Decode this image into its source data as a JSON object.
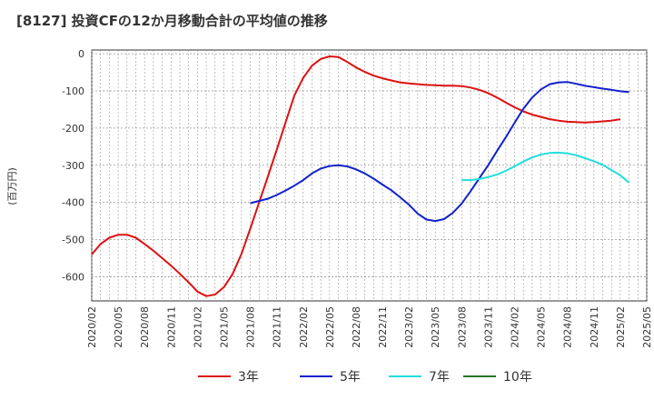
{
  "chart_data": {
    "type": "line",
    "title": "[8127]  投資CFの12か月移動合計の平均値の推移",
    "ylabel": "(百万円)",
    "xlabel": "",
    "ylim": [
      -665,
      10
    ],
    "yticks": [
      0,
      -100,
      -200,
      -300,
      -400,
      -500,
      -600
    ],
    "ytick_labels": [
      "0",
      "-100",
      "-200",
      "-300",
      "-400",
      "-500",
      "-600"
    ],
    "xlim": [
      "2020-02",
      "2025-05"
    ],
    "xticks": [
      "2020/02",
      "2020/05",
      "2020/08",
      "2020/11",
      "2021/02",
      "2021/05",
      "2021/08",
      "2021/11",
      "2022/02",
      "2022/05",
      "2022/08",
      "2022/11",
      "2023/02",
      "2023/05",
      "2023/08",
      "2023/11",
      "2024/02",
      "2024/05",
      "2024/08",
      "2024/11",
      "2025/02",
      "2025/05"
    ],
    "grid": true,
    "legend_position": "bottom",
    "series": [
      {
        "name": "3年",
        "color": "#dd1111",
        "points": [
          [
            "2020-02",
            -540
          ],
          [
            "2020-03",
            -512
          ],
          [
            "2020-04",
            -495
          ],
          [
            "2020-05",
            -487
          ],
          [
            "2020-06",
            -487
          ],
          [
            "2020-07",
            -495
          ],
          [
            "2020-08",
            -512
          ],
          [
            "2020-09",
            -530
          ],
          [
            "2020-10",
            -550
          ],
          [
            "2020-11",
            -570
          ],
          [
            "2020-12",
            -592
          ],
          [
            "2021-01",
            -615
          ],
          [
            "2021-02",
            -640
          ],
          [
            "2021-03",
            -652
          ],
          [
            "2021-04",
            -648
          ],
          [
            "2021-05",
            -628
          ],
          [
            "2021-06",
            -592
          ],
          [
            "2021-07",
            -538
          ],
          [
            "2021-08",
            -470
          ],
          [
            "2021-09",
            -400
          ],
          [
            "2021-10",
            -330
          ],
          [
            "2021-11",
            -258
          ],
          [
            "2021-12",
            -185
          ],
          [
            "2022-01",
            -112
          ],
          [
            "2022-02",
            -65
          ],
          [
            "2022-03",
            -32
          ],
          [
            "2022-04",
            -14
          ],
          [
            "2022-05",
            -7
          ],
          [
            "2022-06",
            -9
          ],
          [
            "2022-07",
            -22
          ],
          [
            "2022-08",
            -37
          ],
          [
            "2022-09",
            -49
          ],
          [
            "2022-10",
            -59
          ],
          [
            "2022-11",
            -66
          ],
          [
            "2022-12",
            -72
          ],
          [
            "2023-01",
            -77
          ],
          [
            "2023-02",
            -80
          ],
          [
            "2023-03",
            -82
          ],
          [
            "2023-04",
            -84
          ],
          [
            "2023-05",
            -85
          ],
          [
            "2023-06",
            -86
          ],
          [
            "2023-07",
            -86
          ],
          [
            "2023-08",
            -87
          ],
          [
            "2023-09",
            -91
          ],
          [
            "2023-10",
            -97
          ],
          [
            "2023-11",
            -106
          ],
          [
            "2023-12",
            -118
          ],
          [
            "2024-01",
            -131
          ],
          [
            "2024-02",
            -144
          ],
          [
            "2024-03",
            -155
          ],
          [
            "2024-04",
            -164
          ],
          [
            "2024-05",
            -170
          ],
          [
            "2024-06",
            -176
          ],
          [
            "2024-07",
            -180
          ],
          [
            "2024-08",
            -183
          ],
          [
            "2024-09",
            -184
          ],
          [
            "2024-10",
            -185
          ],
          [
            "2024-11",
            -184
          ],
          [
            "2024-12",
            -182
          ],
          [
            "2025-01",
            -180
          ],
          [
            "2025-02",
            -176
          ]
        ]
      },
      {
        "name": "5年",
        "color": "#1122cc",
        "points": [
          [
            "2021-08",
            -402
          ],
          [
            "2021-09",
            -396
          ],
          [
            "2021-10",
            -390
          ],
          [
            "2021-11",
            -380
          ],
          [
            "2021-12",
            -368
          ],
          [
            "2022-01",
            -355
          ],
          [
            "2022-02",
            -340
          ],
          [
            "2022-03",
            -322
          ],
          [
            "2022-04",
            -309
          ],
          [
            "2022-05",
            -302
          ],
          [
            "2022-06",
            -300
          ],
          [
            "2022-07",
            -303
          ],
          [
            "2022-08",
            -311
          ],
          [
            "2022-09",
            -322
          ],
          [
            "2022-10",
            -336
          ],
          [
            "2022-11",
            -352
          ],
          [
            "2022-12",
            -367
          ],
          [
            "2023-01",
            -386
          ],
          [
            "2023-02",
            -406
          ],
          [
            "2023-03",
            -430
          ],
          [
            "2023-04",
            -446
          ],
          [
            "2023-05",
            -450
          ],
          [
            "2023-06",
            -445
          ],
          [
            "2023-07",
            -428
          ],
          [
            "2023-08",
            -403
          ],
          [
            "2023-09",
            -370
          ],
          [
            "2023-10",
            -335
          ],
          [
            "2023-11",
            -300
          ],
          [
            "2023-12",
            -262
          ],
          [
            "2024-01",
            -225
          ],
          [
            "2024-02",
            -186
          ],
          [
            "2024-03",
            -148
          ],
          [
            "2024-04",
            -118
          ],
          [
            "2024-05",
            -96
          ],
          [
            "2024-06",
            -82
          ],
          [
            "2024-07",
            -77
          ],
          [
            "2024-08",
            -76
          ],
          [
            "2024-09",
            -81
          ],
          [
            "2024-10",
            -86
          ],
          [
            "2024-11",
            -90
          ],
          [
            "2024-12",
            -94
          ],
          [
            "2025-01",
            -97
          ],
          [
            "2025-02",
            -101
          ],
          [
            "2025-03",
            -103
          ]
        ]
      },
      {
        "name": "7年",
        "color": "#22dddd",
        "points": [
          [
            "2023-08",
            -340
          ],
          [
            "2023-09",
            -340
          ],
          [
            "2023-10",
            -337
          ],
          [
            "2023-11",
            -332
          ],
          [
            "2023-12",
            -325
          ],
          [
            "2024-01",
            -315
          ],
          [
            "2024-02",
            -303
          ],
          [
            "2024-03",
            -290
          ],
          [
            "2024-04",
            -279
          ],
          [
            "2024-05",
            -271
          ],
          [
            "2024-06",
            -267
          ],
          [
            "2024-07",
            -266
          ],
          [
            "2024-08",
            -268
          ],
          [
            "2024-09",
            -273
          ],
          [
            "2024-10",
            -281
          ],
          [
            "2024-11",
            -289
          ],
          [
            "2024-12",
            -299
          ],
          [
            "2025-01",
            -313
          ],
          [
            "2025-02",
            -327
          ],
          [
            "2025-03",
            -347
          ]
        ]
      },
      {
        "name": "10年",
        "color": "#227722",
        "points": []
      }
    ]
  }
}
